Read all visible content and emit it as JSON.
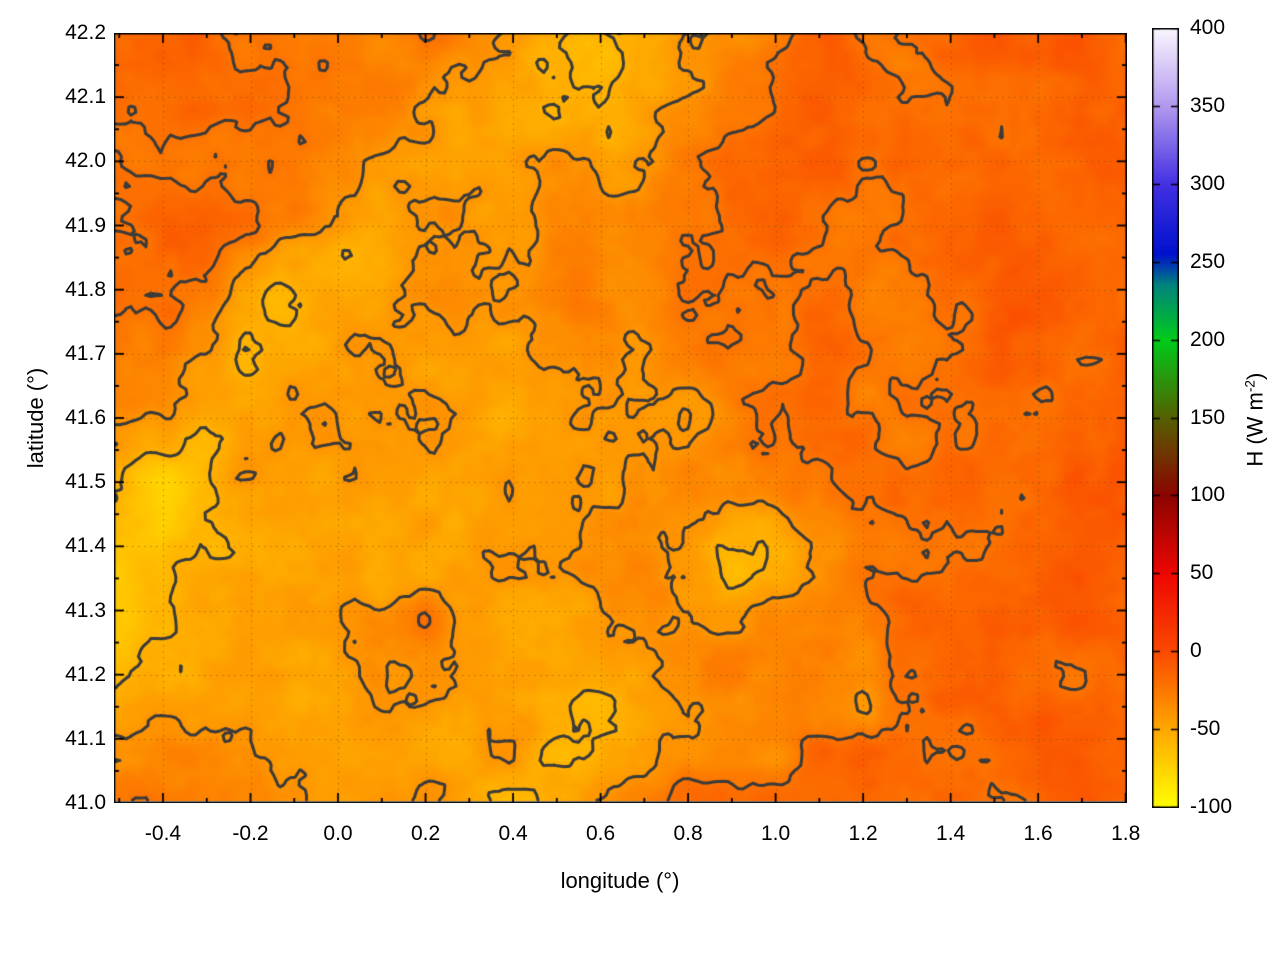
{
  "figure": {
    "background": "#ffffff",
    "axis_color": "#000000"
  },
  "chart_data": {
    "type": "heatmap",
    "xlabel": "longitude (°)",
    "ylabel": "latitude (°)",
    "x_range": [
      -0.512,
      1.803
    ],
    "y_range": [
      41.0,
      42.2
    ],
    "x_ticks": [
      -0.4,
      -0.2,
      0.0,
      0.2,
      0.4,
      0.6,
      0.8,
      1.0,
      1.2,
      1.4,
      1.6,
      1.8
    ],
    "y_ticks": [
      41.0,
      41.1,
      41.2,
      41.3,
      41.4,
      41.5,
      41.6,
      41.7,
      41.8,
      41.9,
      42.0,
      42.1,
      42.2
    ],
    "grid_shown": true,
    "colorbar": {
      "label_main": "H (W m",
      "label_sup": "-2",
      "label_close": ")",
      "min": -100,
      "max": 400,
      "ticks": [
        -100,
        -50,
        0,
        50,
        100,
        150,
        200,
        250,
        300,
        350,
        400
      ],
      "palette": [
        {
          "v": -100,
          "c": "#ffff00"
        },
        {
          "v": -50,
          "c": "#ffa800"
        },
        {
          "v": 0,
          "c": "#fb4a00"
        },
        {
          "v": 50,
          "c": "#ee0700"
        },
        {
          "v": 100,
          "c": "#8d0400"
        },
        {
          "v": 150,
          "c": "#566000"
        },
        {
          "v": 200,
          "c": "#00cc1b"
        },
        {
          "v": 235,
          "c": "#00857c"
        },
        {
          "v": 255,
          "c": "#0011cd"
        },
        {
          "v": 300,
          "c": "#4431e2"
        },
        {
          "v": 350,
          "c": "#b299ef"
        },
        {
          "v": 400,
          "c": "#fcf7ff"
        }
      ]
    },
    "contour_levels": [
      -22,
      -40,
      -56
    ],
    "contour_color": "#3b3b3b",
    "grid": {
      "nx": 24,
      "ny": 18,
      "note": "H (W m-2) on regular lon/lat grid, row 0 = lat 42.2 (north), col 0 = lon -0.512 (west)",
      "values": [
        [
          -16,
          -16,
          -17,
          -18,
          -20,
          -22,
          -26,
          -30,
          -36,
          -45,
          -52,
          -56,
          -50,
          -44,
          -32,
          -20,
          -15,
          -21,
          -17,
          -23,
          -12,
          -15,
          -14,
          -15
        ],
        [
          -16,
          -17,
          -18,
          -19,
          -21,
          -24,
          -29,
          -34,
          -41,
          -50,
          -58,
          -60,
          -52,
          -41,
          -26,
          -18,
          -14,
          -16,
          -23,
          -19,
          -17,
          -15,
          -10,
          -14
        ],
        [
          -17,
          -18,
          -19,
          -21,
          -24,
          -27,
          -34,
          -41,
          -47,
          -54,
          -58,
          -54,
          -45,
          -34,
          -23,
          -18,
          -16,
          -21,
          -17,
          -17,
          -15,
          -14,
          -12,
          -13
        ],
        [
          -17,
          -18,
          -20,
          -22,
          -25,
          -34,
          -43,
          -49,
          -52,
          -49,
          -45,
          -41,
          -36,
          -29,
          -20,
          -16,
          -19,
          -23,
          -17,
          -16,
          -15,
          -15,
          -13,
          -13
        ],
        [
          -18,
          -19,
          -21,
          -23,
          -31,
          -45,
          -52,
          -47,
          -44,
          -41,
          -39,
          -37,
          -32,
          -26,
          -21,
          -19,
          -23,
          -28,
          -21,
          -16,
          -14,
          -17,
          -19,
          -17
        ],
        [
          -18,
          -20,
          -23,
          -36,
          -54,
          -58,
          -50,
          -44,
          -41,
          -39,
          -37,
          -35,
          -29,
          -26,
          -23,
          -21,
          -28,
          -23,
          -18,
          -14,
          -13,
          -17,
          -21,
          -17
        ],
        [
          -20,
          -23,
          -31,
          -49,
          -63,
          -52,
          -45,
          -41,
          -39,
          -37,
          -35,
          -32,
          -29,
          -27,
          -25,
          -23,
          -21,
          -30,
          -23,
          -16,
          -13,
          -14,
          -19,
          -17
        ],
        [
          -23,
          -27,
          -41,
          -58,
          -52,
          -45,
          -41,
          -39,
          -41,
          -44,
          -41,
          -37,
          -41,
          -32,
          -27,
          -23,
          -21,
          -19,
          -28,
          -21,
          -16,
          -16,
          -17,
          -13
        ],
        [
          -27,
          -36,
          -50,
          -54,
          -47,
          -44,
          -41,
          -44,
          -47,
          -45,
          -47,
          -44,
          -45,
          -36,
          -29,
          -25,
          -21,
          -30,
          -19,
          -17,
          -17,
          -19,
          -15,
          -10
        ],
        [
          -36,
          -50,
          -59,
          -50,
          -45,
          -44,
          -42,
          -45,
          -50,
          -47,
          -45,
          -47,
          -44,
          -36,
          -31,
          -27,
          -23,
          -19,
          -28,
          -17,
          -15,
          -17,
          -13,
          -8
        ],
        [
          -50,
          -64,
          -54,
          -47,
          -45,
          -44,
          -45,
          -47,
          -50,
          -47,
          -44,
          -41,
          -38,
          -34,
          -36,
          -31,
          -25,
          -21,
          -17,
          -19,
          -17,
          -15,
          -13,
          -8
        ],
        [
          -58,
          -68,
          -52,
          -47,
          -45,
          -47,
          -50,
          -45,
          -47,
          -52,
          -45,
          -38,
          -34,
          -41,
          -50,
          -45,
          -31,
          -22,
          -19,
          -17,
          -19,
          -15,
          -15,
          -12
        ],
        [
          -63,
          -58,
          -50,
          -45,
          -44,
          -45,
          -52,
          -47,
          -44,
          -45,
          -44,
          -36,
          -31,
          -45,
          -58,
          -50,
          -33,
          -24,
          -19,
          -17,
          -15,
          -15,
          -15,
          -15
        ],
        [
          -65,
          -54,
          -47,
          -44,
          -41,
          -36,
          -31,
          -24,
          -41,
          -47,
          -45,
          -41,
          -36,
          -41,
          -45,
          -36,
          -26,
          -33,
          -21,
          -15,
          -15,
          -15,
          -15,
          -15
        ],
        [
          -63,
          -50,
          -45,
          -44,
          -45,
          -47,
          -45,
          -44,
          -47,
          -50,
          -47,
          -50,
          -52,
          -41,
          -31,
          -33,
          -36,
          -41,
          -25,
          -17,
          -15,
          -15,
          -15,
          -15
        ],
        [
          -54,
          -45,
          -44,
          -47,
          -50,
          -47,
          -44,
          -45,
          -50,
          -47,
          -50,
          -58,
          -50,
          -44,
          -38,
          -34,
          -36,
          -41,
          -22,
          -17,
          -15,
          -13,
          -15,
          -15
        ],
        [
          -41,
          -36,
          -38,
          -44,
          -47,
          -50,
          -45,
          -44,
          -47,
          -45,
          -54,
          -52,
          -44,
          -36,
          -31,
          -34,
          -19,
          -15,
          -15,
          -17,
          -19,
          -15,
          -13,
          -15
        ],
        [
          -23,
          -27,
          -34,
          -41,
          -45,
          -47,
          -44,
          -45,
          -50,
          -52,
          -58,
          -45,
          -36,
          -23,
          -15,
          -13,
          -13,
          -15,
          -17,
          -19,
          -23,
          -15,
          -12,
          -15
        ]
      ]
    }
  }
}
